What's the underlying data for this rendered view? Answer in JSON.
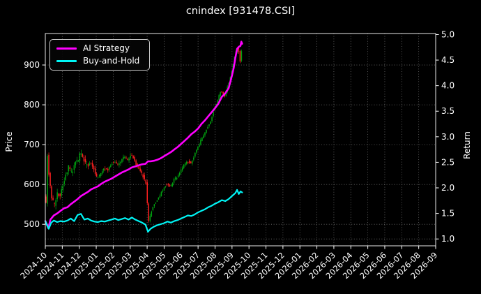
{
  "chart_data": {
    "type": "candlestick+line",
    "title": "cnindex [931478.CSI]",
    "background": "#000000",
    "text_color": "#ffffff",
    "grid": {
      "on": true,
      "color": "#6e6e6e",
      "style": "dotted"
    },
    "left_axis": {
      "label": "Price",
      "ticks": [
        500,
        600,
        700,
        800,
        900
      ],
      "ylim": [
        446,
        979
      ]
    },
    "right_axis": {
      "label": "Return",
      "ticks": [
        1.0,
        1.5,
        2.0,
        2.5,
        3.0,
        3.5,
        4.0,
        4.5,
        5.0
      ],
      "ylim": [
        0.866,
        5.02
      ],
      "baseline": 1.0
    },
    "x_axis": {
      "tick_labels": [
        "2024-10",
        "2024-11",
        "2024-12",
        "2025-01",
        "2025-02",
        "2025-03",
        "2025-04",
        "2025-05",
        "2025-06",
        "2025-07",
        "2025-08",
        "2025-09",
        "2025-10",
        "2025-11",
        "2025-12",
        "2026-01",
        "2026-02",
        "2026-03",
        "2026-04",
        "2026-05",
        "2026-06",
        "2026-07",
        "2026-08",
        "2026-09"
      ]
    },
    "legend": [
      {
        "label": "AI Strategy",
        "color": "#ff00ff"
      },
      {
        "label": "Buy-and-Hold",
        "color": "#00f5f5"
      }
    ],
    "series": [
      {
        "name": "AI Strategy",
        "axis": "return",
        "color": "#ff00ff",
        "width": 2.6,
        "points": [
          [
            0,
            1.35
          ],
          [
            0.1,
            1.28
          ],
          [
            0.18,
            1.21
          ],
          [
            0.3,
            1.38
          ],
          [
            0.5,
            1.46
          ],
          [
            0.7,
            1.5
          ],
          [
            0.9,
            1.55
          ],
          [
            1.1,
            1.6
          ],
          [
            1.3,
            1.62
          ],
          [
            1.5,
            1.68
          ],
          [
            1.7,
            1.73
          ],
          [
            1.9,
            1.78
          ],
          [
            2.1,
            1.84
          ],
          [
            2.3,
            1.88
          ],
          [
            2.5,
            1.92
          ],
          [
            2.7,
            1.97
          ],
          [
            2.9,
            2.0
          ],
          [
            3.1,
            2.03
          ],
          [
            3.3,
            2.08
          ],
          [
            3.5,
            2.12
          ],
          [
            3.7,
            2.15
          ],
          [
            3.9,
            2.18
          ],
          [
            4.1,
            2.22
          ],
          [
            4.3,
            2.26
          ],
          [
            4.5,
            2.3
          ],
          [
            4.7,
            2.33
          ],
          [
            4.9,
            2.36
          ],
          [
            5.1,
            2.4
          ],
          [
            5.3,
            2.42
          ],
          [
            5.5,
            2.44
          ],
          [
            5.7,
            2.46
          ],
          [
            5.9,
            2.47
          ],
          [
            6.05,
            2.52
          ],
          [
            6.2,
            2.52
          ],
          [
            6.4,
            2.53
          ],
          [
            6.6,
            2.55
          ],
          [
            6.8,
            2.58
          ],
          [
            7.0,
            2.62
          ],
          [
            7.2,
            2.66
          ],
          [
            7.4,
            2.7
          ],
          [
            7.6,
            2.75
          ],
          [
            7.8,
            2.8
          ],
          [
            8.0,
            2.86
          ],
          [
            8.2,
            2.92
          ],
          [
            8.4,
            2.98
          ],
          [
            8.6,
            3.05
          ],
          [
            8.8,
            3.1
          ],
          [
            9.0,
            3.16
          ],
          [
            9.2,
            3.25
          ],
          [
            9.4,
            3.32
          ],
          [
            9.6,
            3.4
          ],
          [
            9.8,
            3.48
          ],
          [
            10.0,
            3.56
          ],
          [
            10.2,
            3.65
          ],
          [
            10.4,
            3.78
          ],
          [
            10.6,
            3.85
          ],
          [
            10.8,
            3.95
          ],
          [
            11.0,
            4.2
          ],
          [
            11.1,
            4.35
          ],
          [
            11.2,
            4.55
          ],
          [
            11.3,
            4.72
          ],
          [
            11.4,
            4.76
          ],
          [
            11.5,
            4.78
          ],
          [
            11.55,
            4.86
          ],
          [
            11.6,
            4.82
          ]
        ]
      },
      {
        "name": "Buy-and-Hold",
        "axis": "return",
        "color": "#00f5f5",
        "width": 2.2,
        "points": [
          [
            0,
            1.35
          ],
          [
            0.1,
            1.27
          ],
          [
            0.2,
            1.2
          ],
          [
            0.35,
            1.32
          ],
          [
            0.5,
            1.36
          ],
          [
            0.7,
            1.33
          ],
          [
            0.9,
            1.35
          ],
          [
            1.1,
            1.34
          ],
          [
            1.3,
            1.36
          ],
          [
            1.5,
            1.4
          ],
          [
            1.7,
            1.35
          ],
          [
            1.9,
            1.47
          ],
          [
            2.1,
            1.49
          ],
          [
            2.3,
            1.38
          ],
          [
            2.5,
            1.4
          ],
          [
            2.7,
            1.36
          ],
          [
            2.9,
            1.34
          ],
          [
            3.1,
            1.33
          ],
          [
            3.3,
            1.35
          ],
          [
            3.5,
            1.34
          ],
          [
            3.7,
            1.36
          ],
          [
            3.9,
            1.38
          ],
          [
            4.1,
            1.4
          ],
          [
            4.3,
            1.37
          ],
          [
            4.5,
            1.39
          ],
          [
            4.7,
            1.41
          ],
          [
            4.9,
            1.38
          ],
          [
            5.1,
            1.42
          ],
          [
            5.3,
            1.38
          ],
          [
            5.5,
            1.35
          ],
          [
            5.7,
            1.32
          ],
          [
            5.9,
            1.28
          ],
          [
            6.05,
            1.14
          ],
          [
            6.2,
            1.2
          ],
          [
            6.4,
            1.24
          ],
          [
            6.6,
            1.27
          ],
          [
            6.8,
            1.29
          ],
          [
            7.0,
            1.31
          ],
          [
            7.2,
            1.34
          ],
          [
            7.4,
            1.32
          ],
          [
            7.6,
            1.35
          ],
          [
            7.8,
            1.37
          ],
          [
            8.0,
            1.4
          ],
          [
            8.2,
            1.43
          ],
          [
            8.4,
            1.46
          ],
          [
            8.6,
            1.45
          ],
          [
            8.8,
            1.48
          ],
          [
            9.0,
            1.52
          ],
          [
            9.2,
            1.55
          ],
          [
            9.4,
            1.58
          ],
          [
            9.6,
            1.62
          ],
          [
            9.8,
            1.65
          ],
          [
            10.0,
            1.69
          ],
          [
            10.2,
            1.72
          ],
          [
            10.4,
            1.76
          ],
          [
            10.6,
            1.74
          ],
          [
            10.8,
            1.78
          ],
          [
            11.0,
            1.84
          ],
          [
            11.1,
            1.87
          ],
          [
            11.2,
            1.9
          ],
          [
            11.3,
            1.96
          ],
          [
            11.4,
            1.88
          ],
          [
            11.5,
            1.93
          ],
          [
            11.6,
            1.91
          ]
        ]
      }
    ],
    "price_path": {
      "axis": "price",
      "up_color": "#00a510",
      "down_color": "#ff2020",
      "points": [
        [
          0,
          572
        ],
        [
          0.06,
          502
        ],
        [
          0.14,
          688
        ],
        [
          0.22,
          645
        ],
        [
          0.3,
          602
        ],
        [
          0.45,
          560
        ],
        [
          0.6,
          548
        ],
        [
          0.75,
          582
        ],
        [
          0.9,
          566
        ],
        [
          1.0,
          592
        ],
        [
          1.2,
          618
        ],
        [
          1.4,
          645
        ],
        [
          1.6,
          630
        ],
        [
          1.8,
          655
        ],
        [
          2.0,
          662
        ],
        [
          2.1,
          686
        ],
        [
          2.3,
          664
        ],
        [
          2.5,
          646
        ],
        [
          2.7,
          658
        ],
        [
          2.9,
          638
        ],
        [
          3.1,
          616
        ],
        [
          3.3,
          627
        ],
        [
          3.5,
          644
        ],
        [
          3.7,
          634
        ],
        [
          3.9,
          650
        ],
        [
          4.1,
          660
        ],
        [
          4.3,
          646
        ],
        [
          4.5,
          658
        ],
        [
          4.7,
          670
        ],
        [
          4.9,
          661
        ],
        [
          5.1,
          678
        ],
        [
          5.3,
          660
        ],
        [
          5.5,
          642
        ],
        [
          5.7,
          629
        ],
        [
          5.9,
          612
        ],
        [
          6.0,
          600
        ],
        [
          6.1,
          505
        ],
        [
          6.25,
          528
        ],
        [
          6.4,
          545
        ],
        [
          6.6,
          560
        ],
        [
          6.8,
          574
        ],
        [
          7.0,
          590
        ],
        [
          7.2,
          602
        ],
        [
          7.4,
          593
        ],
        [
          7.6,
          610
        ],
        [
          7.8,
          620
        ],
        [
          8.0,
          632
        ],
        [
          8.2,
          647
        ],
        [
          8.4,
          660
        ],
        [
          8.6,
          653
        ],
        [
          8.8,
          670
        ],
        [
          9.0,
          692
        ],
        [
          9.2,
          710
        ],
        [
          9.4,
          727
        ],
        [
          9.6,
          744
        ],
        [
          9.8,
          762
        ],
        [
          10.0,
          792
        ],
        [
          10.2,
          814
        ],
        [
          10.4,
          836
        ],
        [
          10.6,
          822
        ],
        [
          10.8,
          848
        ],
        [
          11.0,
          882
        ],
        [
          11.15,
          912
        ],
        [
          11.3,
          938
        ],
        [
          11.4,
          948
        ],
        [
          11.5,
          905
        ],
        [
          11.6,
          932
        ]
      ]
    }
  }
}
